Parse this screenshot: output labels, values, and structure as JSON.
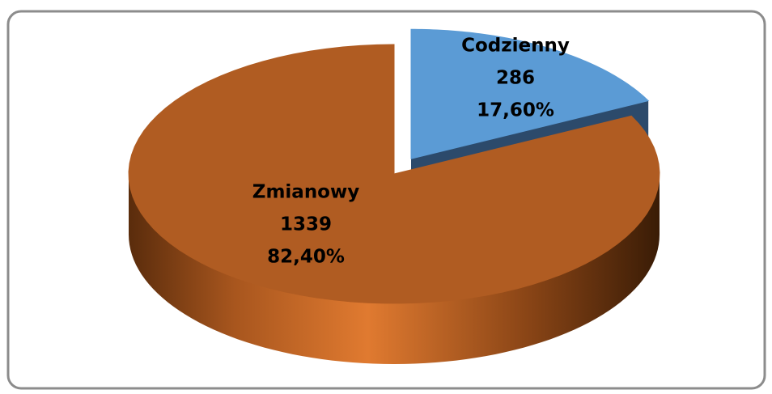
{
  "chart_data": {
    "type": "pie3d",
    "categories": [
      "Codzienny",
      "Zmianowy"
    ],
    "values": [
      286,
      1339
    ],
    "percentages": [
      17.6,
      82.4
    ],
    "percentage_labels": [
      "17,60%",
      "82,40%"
    ],
    "colors": [
      "#5b9bd5",
      "#b05c22"
    ],
    "exploded": [
      true,
      false
    ]
  }
}
